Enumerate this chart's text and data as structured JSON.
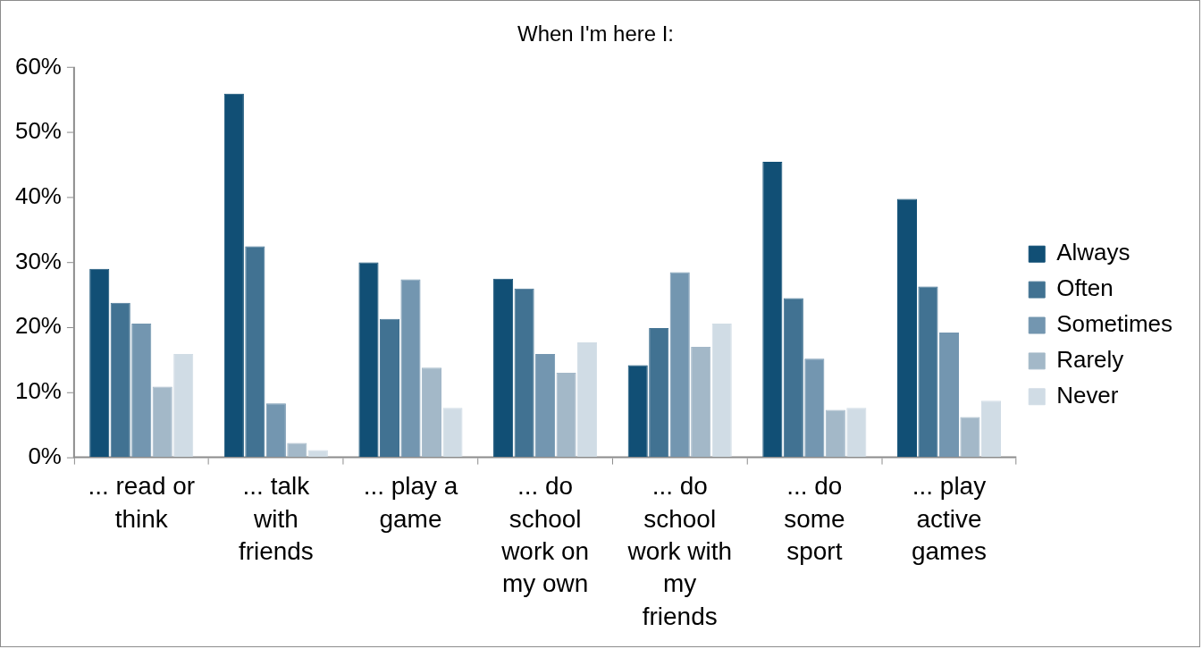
{
  "chart_data": {
    "type": "bar",
    "title": "When I'm here I:",
    "categories": [
      "... read or think",
      "... talk with friends",
      "... play a game",
      "... do school work on my own",
      "... do school work with my friends",
      "... do some sport",
      "... play active games"
    ],
    "series": [
      {
        "name": "Always",
        "color": "#114f75",
        "values": [
          29,
          56,
          30,
          27.5,
          14.2,
          45.5,
          39.8
        ]
      },
      {
        "name": "Often",
        "color": "#417292",
        "values": [
          23.8,
          32.5,
          21.3,
          26,
          19.9,
          24.5,
          26.3
        ]
      },
      {
        "name": "Sometimes",
        "color": "#7396b0",
        "values": [
          20.6,
          8.3,
          27.4,
          15.9,
          28.5,
          15.2,
          19.2
        ]
      },
      {
        "name": "Rarely",
        "color": "#a3b8c8",
        "values": [
          10.9,
          2.2,
          13.8,
          13,
          17,
          7.3,
          6.2
        ]
      },
      {
        "name": "Never",
        "color": "#d0dce5",
        "values": [
          15.9,
          1.1,
          7.6,
          17.7,
          20.6,
          7.6,
          8.7
        ]
      }
    ],
    "ylim": [
      0,
      60
    ],
    "yticks": [
      {
        "value": 0,
        "label": "0%"
      },
      {
        "value": 10,
        "label": "10%"
      },
      {
        "value": 20,
        "label": "20%"
      },
      {
        "value": 30,
        "label": "30%"
      },
      {
        "value": 40,
        "label": "40%"
      },
      {
        "value": 50,
        "label": "50%"
      },
      {
        "value": 60,
        "label": "60%"
      }
    ],
    "grid": false,
    "legend": "right"
  }
}
